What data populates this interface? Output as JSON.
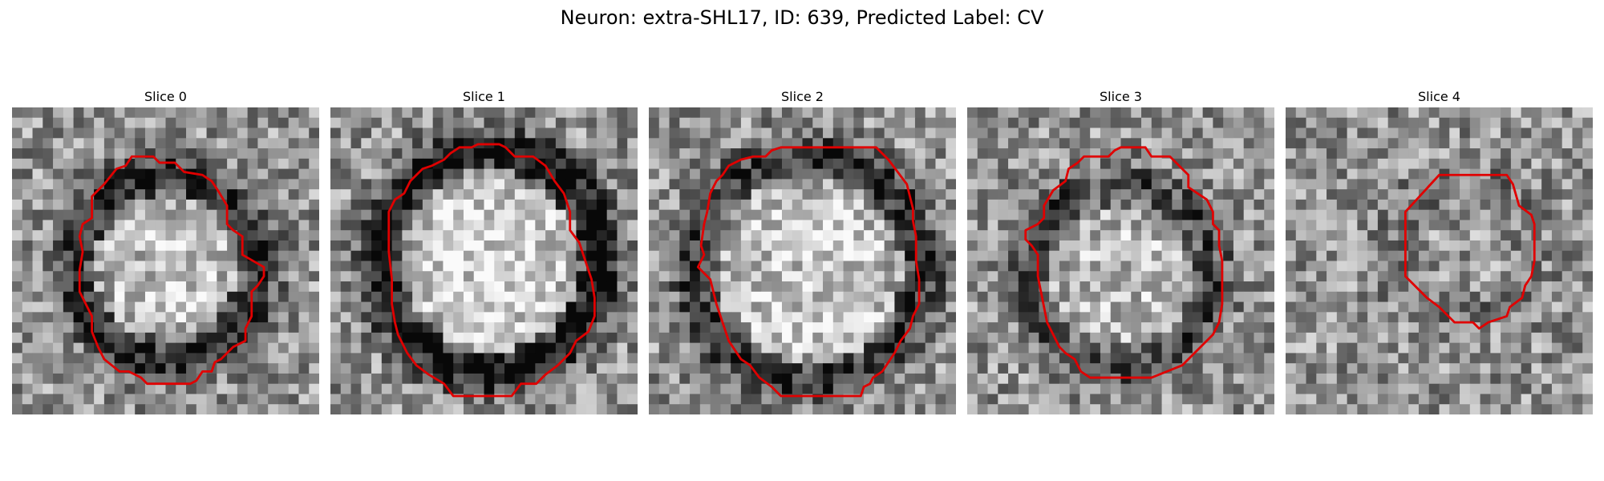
{
  "figure": {
    "title": "Neuron: extra-SHL17, ID: 639, Predicted Label: CV",
    "grid_cells": 30,
    "colormap": "gray",
    "contour_color": "#e00000"
  },
  "slices": [
    {
      "label": "Slice 0",
      "seed": 11,
      "ring_center": [
        0.5,
        0.52
      ],
      "ring_radius": 0.3,
      "ring_strength": 0.45,
      "inner_brightness": 0.18,
      "contour": [
        [
          0.39,
          0.16
        ],
        [
          0.46,
          0.16
        ],
        [
          0.48,
          0.18
        ],
        [
          0.53,
          0.18
        ],
        [
          0.56,
          0.21
        ],
        [
          0.62,
          0.22
        ],
        [
          0.65,
          0.24
        ],
        [
          0.67,
          0.27
        ],
        [
          0.7,
          0.32
        ],
        [
          0.7,
          0.38
        ],
        [
          0.72,
          0.4
        ],
        [
          0.75,
          0.42
        ],
        [
          0.75,
          0.48
        ],
        [
          0.82,
          0.52
        ],
        [
          0.82,
          0.55
        ],
        [
          0.8,
          0.58
        ],
        [
          0.78,
          0.6
        ],
        [
          0.78,
          0.68
        ],
        [
          0.76,
          0.72
        ],
        [
          0.76,
          0.76
        ],
        [
          0.72,
          0.78
        ],
        [
          0.68,
          0.82
        ],
        [
          0.66,
          0.83
        ],
        [
          0.65,
          0.86
        ],
        [
          0.62,
          0.86
        ],
        [
          0.6,
          0.89
        ],
        [
          0.58,
          0.9
        ],
        [
          0.44,
          0.9
        ],
        [
          0.42,
          0.88
        ],
        [
          0.38,
          0.86
        ],
        [
          0.35,
          0.86
        ],
        [
          0.3,
          0.82
        ],
        [
          0.28,
          0.78
        ],
        [
          0.26,
          0.73
        ],
        [
          0.26,
          0.68
        ],
        [
          0.24,
          0.64
        ],
        [
          0.22,
          0.6
        ],
        [
          0.22,
          0.53
        ],
        [
          0.23,
          0.47
        ],
        [
          0.22,
          0.42
        ],
        [
          0.23,
          0.38
        ],
        [
          0.26,
          0.36
        ],
        [
          0.26,
          0.29
        ],
        [
          0.28,
          0.27
        ],
        [
          0.3,
          0.25
        ],
        [
          0.34,
          0.2
        ],
        [
          0.37,
          0.19
        ]
      ]
    },
    {
      "label": "Slice 1",
      "seed": 23,
      "ring_center": [
        0.52,
        0.5
      ],
      "ring_radius": 0.36,
      "ring_strength": 0.55,
      "inner_brightness": 0.25,
      "contour": [
        [
          0.42,
          0.13
        ],
        [
          0.46,
          0.13
        ],
        [
          0.48,
          0.12
        ],
        [
          0.55,
          0.12
        ],
        [
          0.57,
          0.13
        ],
        [
          0.6,
          0.16
        ],
        [
          0.66,
          0.16
        ],
        [
          0.7,
          0.19
        ],
        [
          0.73,
          0.24
        ],
        [
          0.76,
          0.28
        ],
        [
          0.78,
          0.34
        ],
        [
          0.78,
          0.4
        ],
        [
          0.81,
          0.44
        ],
        [
          0.83,
          0.5
        ],
        [
          0.85,
          0.56
        ],
        [
          0.86,
          0.62
        ],
        [
          0.86,
          0.68
        ],
        [
          0.84,
          0.73
        ],
        [
          0.8,
          0.76
        ],
        [
          0.78,
          0.8
        ],
        [
          0.74,
          0.84
        ],
        [
          0.7,
          0.87
        ],
        [
          0.67,
          0.9
        ],
        [
          0.62,
          0.9
        ],
        [
          0.59,
          0.94
        ],
        [
          0.55,
          0.94
        ],
        [
          0.53,
          0.94
        ],
        [
          0.4,
          0.94
        ],
        [
          0.37,
          0.9
        ],
        [
          0.32,
          0.87
        ],
        [
          0.28,
          0.84
        ],
        [
          0.25,
          0.8
        ],
        [
          0.22,
          0.74
        ],
        [
          0.21,
          0.7
        ],
        [
          0.2,
          0.64
        ],
        [
          0.2,
          0.56
        ],
        [
          0.19,
          0.47
        ],
        [
          0.19,
          0.4
        ],
        [
          0.19,
          0.34
        ],
        [
          0.21,
          0.3
        ],
        [
          0.24,
          0.28
        ],
        [
          0.26,
          0.24
        ],
        [
          0.3,
          0.2
        ],
        [
          0.33,
          0.19
        ],
        [
          0.37,
          0.17
        ],
        [
          0.39,
          0.15
        ]
      ]
    },
    {
      "label": "Slice 2",
      "seed": 37,
      "ring_center": [
        0.52,
        0.53
      ],
      "ring_radius": 0.37,
      "ring_strength": 0.4,
      "inner_brightness": 0.2,
      "contour": [
        [
          0.43,
          0.13
        ],
        [
          0.74,
          0.13
        ],
        [
          0.78,
          0.17
        ],
        [
          0.81,
          0.21
        ],
        [
          0.84,
          0.25
        ],
        [
          0.85,
          0.29
        ],
        [
          0.86,
          0.33
        ],
        [
          0.86,
          0.37
        ],
        [
          0.87,
          0.42
        ],
        [
          0.87,
          0.5
        ],
        [
          0.88,
          0.56
        ],
        [
          0.88,
          0.64
        ],
        [
          0.86,
          0.68
        ],
        [
          0.85,
          0.72
        ],
        [
          0.82,
          0.76
        ],
        [
          0.8,
          0.8
        ],
        [
          0.78,
          0.83
        ],
        [
          0.76,
          0.86
        ],
        [
          0.73,
          0.88
        ],
        [
          0.72,
          0.9
        ],
        [
          0.7,
          0.91
        ],
        [
          0.69,
          0.94
        ],
        [
          0.64,
          0.94
        ],
        [
          0.62,
          0.94
        ],
        [
          0.43,
          0.94
        ],
        [
          0.4,
          0.91
        ],
        [
          0.36,
          0.88
        ],
        [
          0.33,
          0.84
        ],
        [
          0.3,
          0.82
        ],
        [
          0.26,
          0.76
        ],
        [
          0.24,
          0.7
        ],
        [
          0.22,
          0.64
        ],
        [
          0.2,
          0.56
        ],
        [
          0.16,
          0.52
        ],
        [
          0.18,
          0.48
        ],
        [
          0.17,
          0.45
        ],
        [
          0.18,
          0.38
        ],
        [
          0.19,
          0.34
        ],
        [
          0.2,
          0.28
        ],
        [
          0.22,
          0.24
        ],
        [
          0.24,
          0.22
        ],
        [
          0.26,
          0.19
        ],
        [
          0.3,
          0.17
        ],
        [
          0.34,
          0.16
        ],
        [
          0.38,
          0.16
        ],
        [
          0.4,
          0.14
        ]
      ]
    },
    {
      "label": "Slice 3",
      "seed": 53,
      "ring_center": [
        0.5,
        0.55
      ],
      "ring_radius": 0.3,
      "ring_strength": 0.3,
      "inner_brightness": 0.15,
      "contour": [
        [
          0.5,
          0.13
        ],
        [
          0.52,
          0.13
        ],
        [
          0.54,
          0.13
        ],
        [
          0.58,
          0.13
        ],
        [
          0.6,
          0.16
        ],
        [
          0.66,
          0.16
        ],
        [
          0.7,
          0.2
        ],
        [
          0.72,
          0.22
        ],
        [
          0.72,
          0.26
        ],
        [
          0.78,
          0.3
        ],
        [
          0.8,
          0.34
        ],
        [
          0.8,
          0.38
        ],
        [
          0.82,
          0.4
        ],
        [
          0.82,
          0.45
        ],
        [
          0.83,
          0.5
        ],
        [
          0.83,
          0.58
        ],
        [
          0.83,
          0.64
        ],
        [
          0.82,
          0.7
        ],
        [
          0.8,
          0.74
        ],
        [
          0.76,
          0.78
        ],
        [
          0.74,
          0.8
        ],
        [
          0.7,
          0.84
        ],
        [
          0.65,
          0.86
        ],
        [
          0.6,
          0.88
        ],
        [
          0.55,
          0.88
        ],
        [
          0.4,
          0.88
        ],
        [
          0.37,
          0.86
        ],
        [
          0.35,
          0.82
        ],
        [
          0.32,
          0.8
        ],
        [
          0.3,
          0.78
        ],
        [
          0.28,
          0.74
        ],
        [
          0.26,
          0.7
        ],
        [
          0.25,
          0.65
        ],
        [
          0.24,
          0.6
        ],
        [
          0.23,
          0.55
        ],
        [
          0.23,
          0.48
        ],
        [
          0.21,
          0.45
        ],
        [
          0.19,
          0.43
        ],
        [
          0.19,
          0.4
        ],
        [
          0.23,
          0.38
        ],
        [
          0.25,
          0.36
        ],
        [
          0.25,
          0.32
        ],
        [
          0.28,
          0.27
        ],
        [
          0.32,
          0.24
        ],
        [
          0.33,
          0.2
        ],
        [
          0.36,
          0.18
        ],
        [
          0.38,
          0.16
        ],
        [
          0.42,
          0.16
        ],
        [
          0.46,
          0.16
        ],
        [
          0.48,
          0.14
        ]
      ]
    },
    {
      "label": "Slice 4",
      "seed": 71,
      "ring_center": [
        0.58,
        0.46
      ],
      "ring_radius": 0.22,
      "ring_strength": 0.1,
      "inner_brightness": 0.02,
      "contour": [
        [
          0.5,
          0.22
        ],
        [
          0.72,
          0.22
        ],
        [
          0.74,
          0.25
        ],
        [
          0.76,
          0.32
        ],
        [
          0.8,
          0.35
        ],
        [
          0.81,
          0.38
        ],
        [
          0.81,
          0.5
        ],
        [
          0.8,
          0.55
        ],
        [
          0.78,
          0.58
        ],
        [
          0.77,
          0.62
        ],
        [
          0.73,
          0.65
        ],
        [
          0.72,
          0.68
        ],
        [
          0.66,
          0.7
        ],
        [
          0.63,
          0.72
        ],
        [
          0.61,
          0.7
        ],
        [
          0.55,
          0.7
        ],
        [
          0.53,
          0.68
        ],
        [
          0.5,
          0.65
        ],
        [
          0.46,
          0.62
        ],
        [
          0.42,
          0.58
        ],
        [
          0.39,
          0.55
        ],
        [
          0.39,
          0.45
        ],
        [
          0.39,
          0.34
        ]
      ]
    }
  ]
}
